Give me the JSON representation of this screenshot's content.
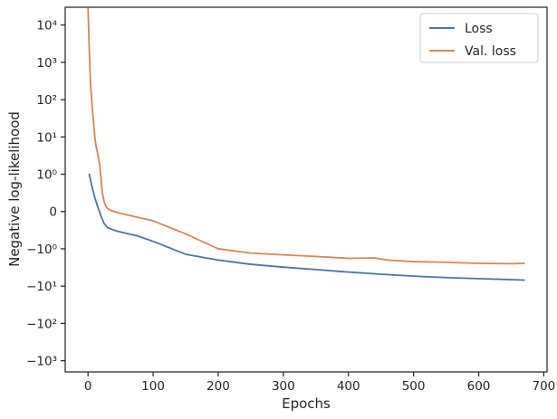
{
  "chart_data": {
    "type": "line",
    "xlabel": "Epochs",
    "ylabel": "Negative log-likelihood",
    "xlim": [
      -35,
      705
    ],
    "ylim": [
      -2000,
      30000
    ],
    "yscale": "symlog",
    "symlog_linthresh": 1,
    "grid": false,
    "legend_placement": "top-right",
    "x_ticks": [
      0,
      100,
      200,
      300,
      400,
      500,
      600,
      700
    ],
    "x_tick_labels": [
      "0",
      "100",
      "200",
      "300",
      "400",
      "500",
      "600",
      "700"
    ],
    "y_ticks": [
      -1000,
      -100,
      -10,
      -1,
      0,
      1,
      10,
      100,
      1000,
      10000
    ],
    "y_tick_labels": [
      "−10³",
      "−10²",
      "−10¹",
      "−10⁰",
      "0",
      "10⁰",
      "10¹",
      "10²",
      "10³",
      "10⁴"
    ],
    "series": [
      {
        "name": "Loss",
        "color": "#4c72b0",
        "x": [
          2,
          5,
          10,
          15,
          20,
          25,
          30,
          40,
          50,
          75,
          100,
          150,
          200,
          250,
          300,
          350,
          400,
          450,
          500,
          550,
          600,
          650,
          670
        ],
        "y": [
          1.0,
          0.75,
          0.4,
          0.12,
          -0.12,
          -0.33,
          -0.43,
          -0.5,
          -0.55,
          -0.65,
          -0.8,
          -1.4,
          -2.0,
          -2.6,
          -3.1,
          -3.6,
          -4.2,
          -4.8,
          -5.4,
          -5.9,
          -6.3,
          -6.7,
          -6.9
        ]
      },
      {
        "name": "Val. loss",
        "color": "#dd8452",
        "x": [
          0,
          2,
          4,
          6,
          8,
          10,
          12,
          15,
          18,
          20,
          22,
          25,
          28,
          30,
          35,
          40,
          50,
          75,
          100,
          150,
          200,
          250,
          300,
          350,
          400,
          440,
          460,
          500,
          550,
          600,
          650,
          670
        ],
        "y": [
          30000,
          2000,
          250,
          80,
          30,
          12,
          6,
          3.5,
          1.8,
          0.9,
          0.5,
          0.25,
          0.12,
          0.08,
          0.03,
          0.0,
          -0.05,
          -0.15,
          -0.25,
          -0.6,
          -1.0,
          -1.3,
          -1.45,
          -1.6,
          -1.8,
          -1.75,
          -2.0,
          -2.2,
          -2.3,
          -2.45,
          -2.5,
          -2.45
        ]
      }
    ]
  }
}
